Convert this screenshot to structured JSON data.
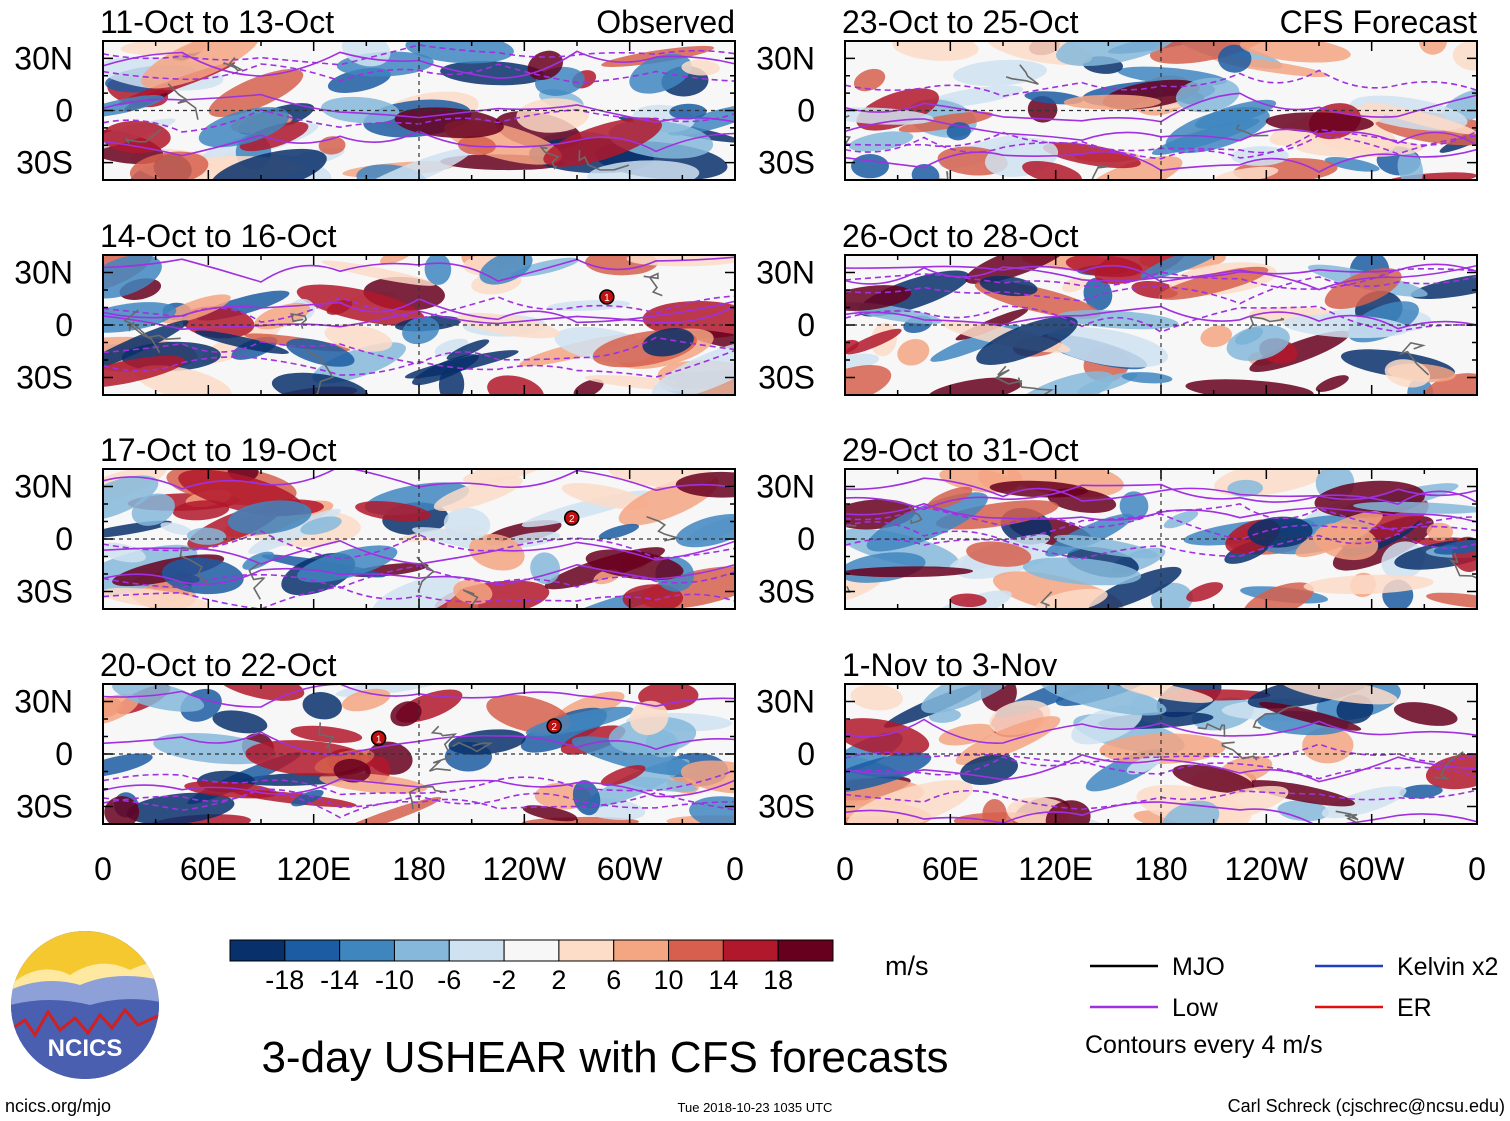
{
  "chart_data": {
    "type": "heatmap",
    "title": "3-day USHEAR with CFS forecasts",
    "units": "m/s",
    "x_ticks": [
      "0",
      "60E",
      "120E",
      "180",
      "120W",
      "60W",
      "0"
    ],
    "y_ticks": [
      "30N",
      "0",
      "30S"
    ],
    "columns": [
      {
        "label": "Observed",
        "panels": [
          {
            "title": "11-Oct to 13-Oct",
            "storms": []
          },
          {
            "title": "14-Oct to 16-Oct",
            "storms": [
              {
                "lon": 287,
                "lat": 16,
                "sym": "1"
              }
            ]
          },
          {
            "title": "17-Oct to 19-Oct",
            "storms": [
              {
                "lon": 267,
                "lat": 12,
                "sym": "2"
              }
            ]
          },
          {
            "title": "20-Oct to 22-Oct",
            "storms": [
              {
                "lon": 157,
                "lat": 9,
                "sym": "1"
              },
              {
                "lon": 257,
                "lat": 16,
                "sym": "2"
              }
            ]
          }
        ]
      },
      {
        "label": "CFS Forecast",
        "panels": [
          {
            "title": "23-Oct to 25-Oct",
            "storms": []
          },
          {
            "title": "26-Oct to 28-Oct",
            "storms": []
          },
          {
            "title": "29-Oct to 31-Oct",
            "storms": []
          },
          {
            "title": "1-Nov to 3-Nov",
            "storms": []
          }
        ]
      }
    ],
    "colorbar": {
      "ticks": [
        "-18",
        "-14",
        "-10",
        "-6",
        "-2",
        "2",
        "6",
        "10",
        "14",
        "18"
      ],
      "colors": [
        "#08306b",
        "#1c5ca2",
        "#3f86bf",
        "#85b8db",
        "#cfe2f1",
        "#f7f7f7",
        "#fddcc8",
        "#f4a582",
        "#d6604d",
        "#b2182b",
        "#67001f"
      ]
    },
    "legend": [
      {
        "label": "MJO",
        "color": "#000000"
      },
      {
        "label": "Kelvin x2",
        "color": "#1f3fbf"
      },
      {
        "label": "Low",
        "color": "#a030e0"
      },
      {
        "label": "ER",
        "color": "#e01010"
      }
    ],
    "contour_note": "Contours every 4 m/s"
  },
  "footer": {
    "site": "ncics.org/mjo",
    "timestamp": "Tue 2018-10-23 1035 UTC",
    "author": "Carl Schreck (cjschrec@ncsu.edu)",
    "logo_text": "NCICS"
  }
}
